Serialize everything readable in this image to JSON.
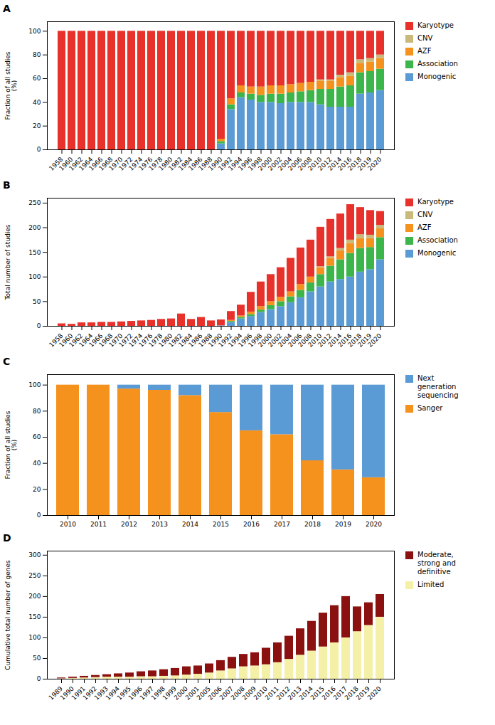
{
  "chart_data": [
    {
      "type": "bar",
      "stacked": true,
      "title": "A",
      "ylabel": "Fraction of all studies\n(%)",
      "categories": [
        "1958",
        "1960",
        "1962",
        "1964",
        "1966",
        "1968",
        "1970",
        "1972",
        "1974",
        "1976",
        "1978",
        "1980",
        "1982",
        "1984",
        "1986",
        "1988",
        "1990",
        "1992",
        "1994",
        "1996",
        "1998",
        "2000",
        "2002",
        "2004",
        "2006",
        "2008",
        "2010",
        "2012",
        "2014",
        "2016",
        "2018",
        "2019",
        "2020"
      ],
      "series": [
        {
          "name": "Monogenic",
          "color": "#5B9BD5",
          "values": [
            0,
            0,
            0,
            0,
            0,
            0,
            0,
            0,
            0,
            0,
            0,
            0,
            0,
            0,
            0,
            0,
            5,
            34,
            44,
            42,
            40,
            40,
            39,
            40,
            40,
            40,
            38,
            36,
            36,
            36,
            47,
            48,
            50
          ]
        },
        {
          "name": "Association",
          "color": "#3CB54A",
          "values": [
            0,
            0,
            0,
            0,
            0,
            0,
            0,
            0,
            0,
            0,
            0,
            0,
            0,
            0,
            0,
            0,
            2,
            4,
            4,
            5,
            6,
            7,
            8,
            8,
            9,
            10,
            13,
            15,
            17,
            18,
            18,
            18,
            18
          ]
        },
        {
          "name": "AZF",
          "color": "#F5921E",
          "values": [
            0,
            0,
            0,
            0,
            0,
            0,
            0,
            0,
            0,
            0,
            0,
            0,
            0,
            0,
            0,
            0,
            2,
            5,
            6,
            6,
            7,
            7,
            7,
            7,
            7,
            7,
            7,
            7,
            8,
            8,
            8,
            8,
            9
          ]
        },
        {
          "name": "CNV",
          "color": "#C9B97A",
          "values": [
            0,
            0,
            0,
            0,
            0,
            0,
            0,
            0,
            0,
            0,
            0,
            0,
            0,
            0,
            0,
            0,
            0,
            0,
            0,
            0,
            0,
            0,
            0,
            0,
            0,
            0,
            1,
            1,
            2,
            3,
            3,
            3,
            3
          ]
        },
        {
          "name": "Karyotype",
          "color": "#E8312A",
          "values": [
            100,
            100,
            100,
            100,
            100,
            100,
            100,
            100,
            100,
            100,
            100,
            100,
            100,
            100,
            100,
            100,
            91,
            57,
            46,
            47,
            47,
            46,
            46,
            45,
            44,
            43,
            41,
            41,
            37,
            35,
            24,
            23,
            20
          ]
        }
      ],
      "ylim": [
        0,
        108
      ],
      "yticks": [
        0,
        20,
        40,
        60,
        80,
        100
      ],
      "grid": false,
      "legend": "right"
    },
    {
      "type": "bar",
      "stacked": true,
      "title": "B",
      "ylabel": "Total number of studies",
      "categories": [
        "1958",
        "1960",
        "1962",
        "1964",
        "1966",
        "1968",
        "1970",
        "1972",
        "1974",
        "1976",
        "1978",
        "1980",
        "1982",
        "1984",
        "1986",
        "1988",
        "1990",
        "1992",
        "1994",
        "1996",
        "1998",
        "2000",
        "2002",
        "2004",
        "2006",
        "2008",
        "2010",
        "2012",
        "2014",
        "2016",
        "2018",
        "2019",
        "2020"
      ],
      "series": [
        {
          "name": "Monogenic",
          "color": "#5B9BD5",
          "values": [
            0,
            0,
            0,
            0,
            0,
            0,
            0,
            0,
            0,
            0,
            0,
            0,
            0,
            0,
            0,
            0,
            1,
            8,
            15,
            20,
            28,
            34,
            40,
            48,
            58,
            70,
            80,
            90,
            95,
            100,
            110,
            115,
            135
          ]
        },
        {
          "name": "Association",
          "color": "#3CB54A",
          "values": [
            0,
            0,
            0,
            0,
            0,
            0,
            0,
            0,
            0,
            0,
            0,
            0,
            0,
            0,
            0,
            0,
            0,
            2,
            3,
            4,
            5,
            8,
            10,
            12,
            15,
            18,
            25,
            32,
            40,
            48,
            48,
            45,
            45
          ]
        },
        {
          "name": "AZF",
          "color": "#F5921E",
          "values": [
            0,
            0,
            0,
            0,
            0,
            0,
            0,
            0,
            0,
            0,
            0,
            0,
            0,
            0,
            0,
            0,
            0,
            2,
            3,
            5,
            7,
            8,
            9,
            10,
            12,
            12,
            14,
            16,
            18,
            20,
            20,
            18,
            18
          ]
        },
        {
          "name": "CNV",
          "color": "#C9B97A",
          "values": [
            0,
            0,
            0,
            0,
            0,
            0,
            0,
            0,
            0,
            0,
            0,
            0,
            0,
            0,
            0,
            0,
            0,
            0,
            0,
            0,
            0,
            0,
            0,
            0,
            0,
            0,
            2,
            3,
            5,
            7,
            8,
            7,
            7
          ]
        },
        {
          "name": "Karyotype",
          "color": "#E8312A",
          "values": [
            5,
            4,
            7,
            7,
            8,
            8,
            9,
            10,
            11,
            12,
            14,
            15,
            25,
            14,
            18,
            11,
            12,
            18,
            22,
            40,
            50,
            55,
            60,
            68,
            74,
            75,
            80,
            76,
            70,
            72,
            55,
            50,
            28
          ]
        }
      ],
      "ylim": [
        0,
        260
      ],
      "yticks": [
        0,
        50,
        100,
        150,
        200,
        250
      ],
      "grid": false,
      "legend": "right"
    },
    {
      "type": "bar",
      "stacked": true,
      "title": "C",
      "ylabel": "Fraction of all studies\n(%)",
      "categories": [
        "2010",
        "2011",
        "2012",
        "2013",
        "2014",
        "2015",
        "2016",
        "2017",
        "2018",
        "2019",
        "2020"
      ],
      "series": [
        {
          "name": "Sanger",
          "color": "#F5921E",
          "values": [
            100,
            100,
            97,
            96,
            92,
            79,
            65,
            62,
            42,
            35,
            29
          ]
        },
        {
          "name": "Next\ngeneration\nsequencing",
          "color": "#5B9BD5",
          "values": [
            0,
            0,
            3,
            4,
            8,
            21,
            35,
            38,
            58,
            65,
            71
          ]
        }
      ],
      "ylim": [
        0,
        108
      ],
      "yticks": [
        0,
        20,
        40,
        60,
        80,
        100
      ],
      "grid": false,
      "legend": "right"
    },
    {
      "type": "bar",
      "stacked": true,
      "title": "D",
      "ylabel": "Cumulative total number of genes",
      "categories": [
        "1989",
        "1990",
        "1991",
        "1992",
        "1993",
        "1994",
        "1995",
        "1996",
        "1997",
        "1998",
        "1999",
        "2000",
        "2001",
        "2005",
        "2006",
        "2007",
        "2008",
        "2009",
        "2010",
        "2011",
        "2012",
        "2013",
        "2014",
        "2015",
        "2016",
        "2017",
        "2018",
        "2019",
        "2020"
      ],
      "series": [
        {
          "name": "Limited",
          "color": "#F5F0A8",
          "values": [
            1,
            2,
            3,
            4,
            5,
            5,
            5,
            6,
            6,
            7,
            8,
            10,
            12,
            15,
            20,
            25,
            30,
            32,
            35,
            40,
            48,
            58,
            68,
            78,
            88,
            100,
            115,
            130,
            150
          ]
        },
        {
          "name": "Moderate,\nstrong and\ndefinitive",
          "color": "#8B1010",
          "values": [
            2,
            3,
            4,
            5,
            6,
            8,
            10,
            12,
            14,
            16,
            18,
            20,
            20,
            22,
            25,
            28,
            30,
            32,
            40,
            48,
            56,
            64,
            72,
            82,
            90,
            100,
            60,
            55,
            55
          ]
        }
      ],
      "ylim": [
        0,
        310
      ],
      "yticks": [
        0,
        50,
        100,
        150,
        200,
        250,
        300
      ],
      "grid": false,
      "legend": "right"
    }
  ]
}
